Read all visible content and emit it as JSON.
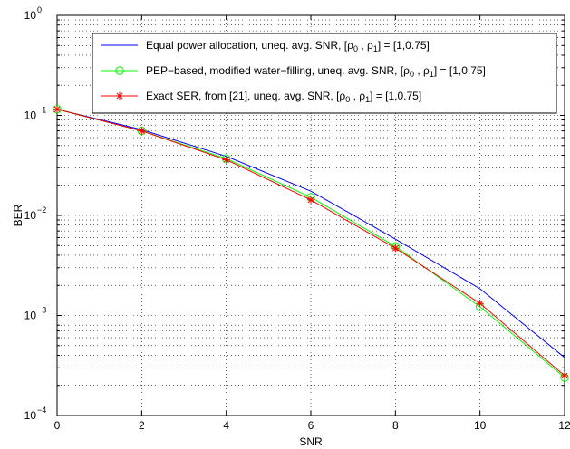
{
  "chart_data": {
    "type": "line",
    "xlabel": "SNR",
    "ylabel": "BER",
    "x_scale": "linear",
    "y_scale": "log",
    "xlim": [
      0,
      12
    ],
    "ylim": [
      0.0001,
      1
    ],
    "grid": true,
    "legend_position": "top-right",
    "x_ticks": [
      0,
      2,
      4,
      6,
      8,
      10,
      12
    ],
    "x_tick_labels": [
      "0",
      "2",
      "4",
      "6",
      "8",
      "10",
      "12"
    ],
    "y_ticks": [
      0.0001,
      0.001,
      0.01,
      0.1,
      1
    ],
    "y_tick_labels": [
      {
        "base": "10",
        "exp": "−4"
      },
      {
        "base": "10",
        "exp": "−3"
      },
      {
        "base": "10",
        "exp": "−2"
      },
      {
        "base": "10",
        "exp": "−1"
      },
      {
        "base": "10",
        "exp": "0"
      }
    ],
    "series": [
      {
        "name": "Equal power allocation, uneq. avg. SNR, [ρ0 , ρ1] = [1,0.75]",
        "legend": {
          "pre": "Equal power allocation, uneq. avg. SNR, [ρ",
          "s1": "0",
          "mid": " , ρ",
          "s2": "1",
          "post": "] = [1,0.75]"
        },
        "color": "#0000ff",
        "marker": "none",
        "x": [
          0,
          2,
          4,
          6,
          8,
          10,
          12
        ],
        "values": [
          0.115,
          0.072,
          0.039,
          0.0175,
          0.0058,
          0.00185,
          0.00038
        ]
      },
      {
        "name": "PEP−based, modified water−filling, uneq. avg. SNR, [ρ0 , ρ1] = [1,0.75]",
        "legend": {
          "pre": "PEP−based, modified water−filling, uneq. avg. SNR, [ρ",
          "s1": "0",
          "mid": " , ρ",
          "s2": "1",
          "post": "] = [1,0.75]"
        },
        "color": "#00ff00",
        "marker": "circle",
        "x": [
          0,
          2,
          4,
          6,
          8,
          10,
          12
        ],
        "values": [
          0.115,
          0.07,
          0.037,
          0.0152,
          0.0049,
          0.00122,
          0.00024
        ]
      },
      {
        "name": "Exact SER, from [21], uneq. avg. SNR, [ρ0 , ρ1] = [1,0.75]",
        "legend": {
          "pre": "Exact SER, from [21], uneq. avg. SNR, [ρ",
          "s1": "0",
          "mid": " , ρ",
          "s2": "1",
          "post": "] = [1,0.75]"
        },
        "color": "#ff0000",
        "marker": "star",
        "x": [
          0,
          2,
          4,
          6,
          8,
          10,
          12
        ],
        "values": [
          0.115,
          0.07,
          0.036,
          0.0143,
          0.0047,
          0.00132,
          0.00025
        ]
      }
    ]
  }
}
